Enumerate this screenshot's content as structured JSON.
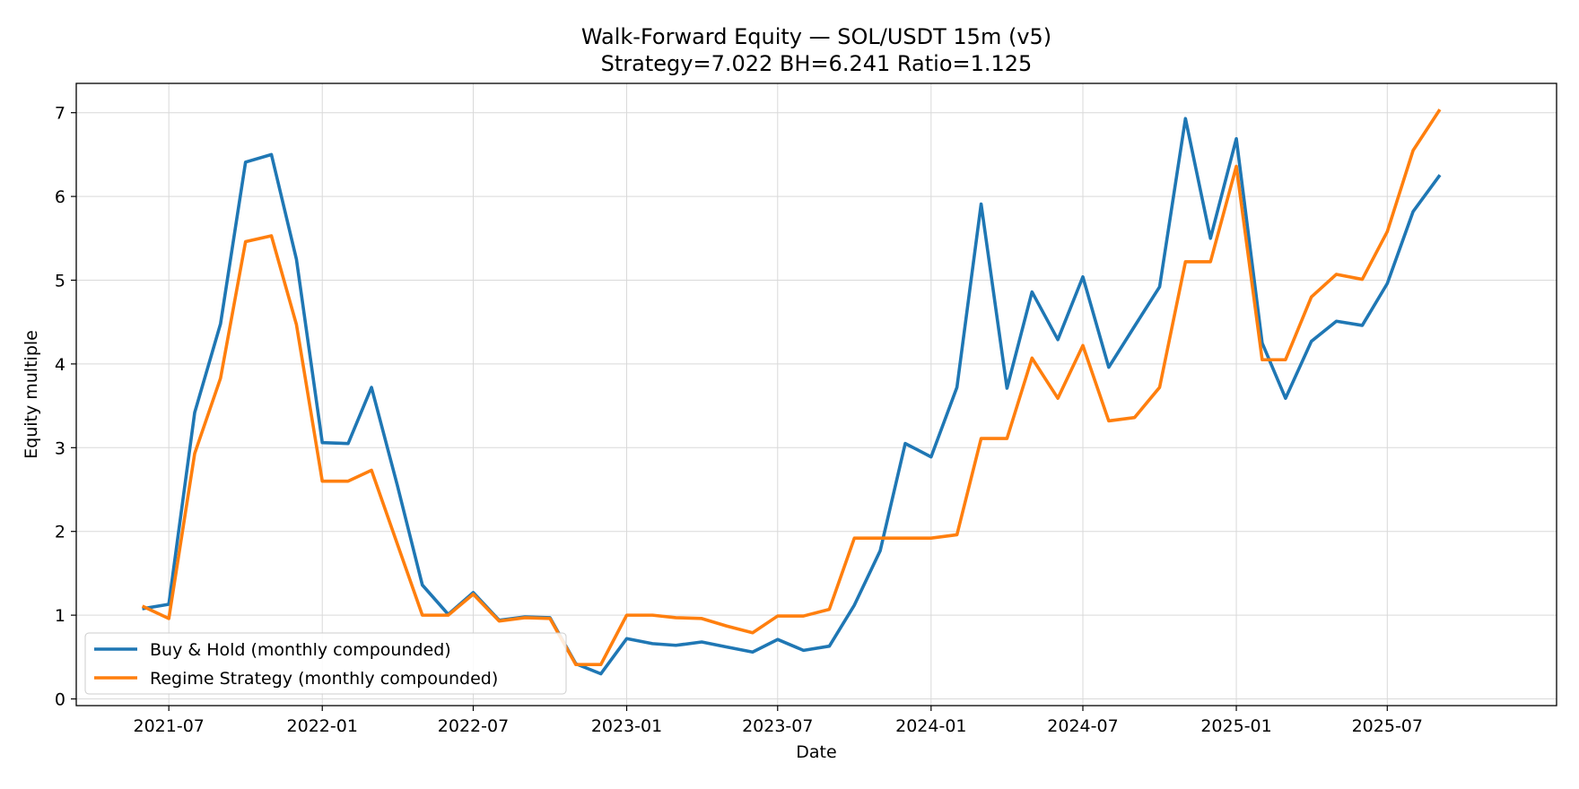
{
  "chart_data": {
    "type": "line",
    "title": "Walk-Forward Equity — SOL/USDT 15m (v5)",
    "subtitle": "Strategy=7.022  BH=6.241  Ratio=1.125",
    "xlabel": "Date",
    "ylabel": "Equity multiple",
    "xlim": [
      "2021-03-12",
      "2026-01-20"
    ],
    "ylim": [
      -0.08,
      7.35
    ],
    "x_ticks": [
      "2021-07",
      "2022-01",
      "2022-07",
      "2023-01",
      "2023-07",
      "2024-01",
      "2024-07",
      "2025-01",
      "2025-07"
    ],
    "y_ticks": [
      0,
      1,
      2,
      3,
      4,
      5,
      6,
      7
    ],
    "grid": true,
    "legend_position": "lower-left",
    "x": [
      "2021-06-01",
      "2021-07-01",
      "2021-08-01",
      "2021-09-01",
      "2021-10-01",
      "2021-11-01",
      "2021-12-01",
      "2022-01-01",
      "2022-02-01",
      "2022-03-01",
      "2022-04-01",
      "2022-05-01",
      "2022-06-01",
      "2022-07-01",
      "2022-08-01",
      "2022-09-01",
      "2022-10-01",
      "2022-11-01",
      "2022-12-01",
      "2023-01-01",
      "2023-02-01",
      "2023-03-01",
      "2023-04-01",
      "2023-05-01",
      "2023-06-01",
      "2023-07-01",
      "2023-08-01",
      "2023-09-01",
      "2023-10-01",
      "2023-11-01",
      "2023-12-01",
      "2024-01-01",
      "2024-02-01",
      "2024-03-01",
      "2024-04-01",
      "2024-05-01",
      "2024-06-01",
      "2024-07-01",
      "2024-08-01",
      "2024-09-01",
      "2024-10-01",
      "2024-11-01",
      "2024-12-01",
      "2025-01-01",
      "2025-02-01",
      "2025-03-01",
      "2025-04-01",
      "2025-05-01",
      "2025-06-01",
      "2025-07-01",
      "2025-08-01",
      "2025-09-01"
    ],
    "series": [
      {
        "name": "Buy & Hold (monthly compounded)",
        "color": "#1f77b4",
        "values": [
          1.08,
          1.13,
          3.42,
          4.48,
          6.41,
          6.5,
          5.25,
          3.06,
          3.05,
          3.72,
          2.55,
          1.36,
          1.01,
          1.27,
          0.94,
          0.98,
          0.97,
          0.42,
          0.3,
          0.72,
          0.66,
          0.64,
          0.68,
          0.62,
          0.56,
          0.71,
          0.58,
          0.63,
          1.12,
          1.77,
          3.05,
          2.89,
          3.72,
          5.91,
          3.71,
          4.86,
          4.29,
          5.04,
          3.96,
          4.45,
          4.92,
          6.93,
          5.5,
          6.69,
          4.25,
          3.59,
          4.27,
          4.51,
          4.46,
          4.96,
          5.82,
          6.241
        ]
      },
      {
        "name": "Regime Strategy (monthly compounded)",
        "color": "#ff7f0e",
        "values": [
          1.1,
          0.96,
          2.93,
          3.83,
          5.46,
          5.53,
          4.47,
          2.6,
          2.6,
          2.73,
          1.85,
          1.0,
          1.0,
          1.25,
          0.93,
          0.97,
          0.96,
          0.41,
          0.41,
          1.0,
          1.0,
          0.97,
          0.96,
          0.87,
          0.79,
          0.99,
          0.99,
          1.07,
          1.92,
          1.92,
          1.92,
          1.92,
          1.96,
          3.11,
          3.11,
          4.07,
          3.59,
          4.22,
          3.32,
          3.36,
          3.72,
          5.22,
          5.22,
          6.36,
          4.05,
          4.05,
          4.8,
          5.07,
          5.01,
          5.58,
          6.55,
          7.022
        ]
      }
    ]
  }
}
